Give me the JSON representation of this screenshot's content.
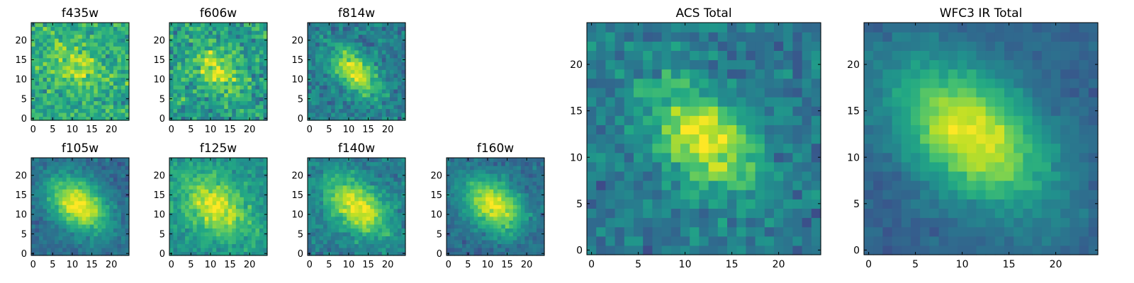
{
  "colormap": "viridis",
  "chart_data": [
    {
      "type": "heatmap",
      "title": "f435w",
      "size": 25,
      "xticks": [
        0,
        5,
        10,
        15,
        20
      ],
      "yticks": [
        0,
        5,
        10,
        15,
        20
      ],
      "xlim": [
        0,
        24
      ],
      "ylim": [
        0,
        24
      ],
      "center": [
        11,
        13
      ],
      "sigma": [
        4.5,
        3
      ],
      "angle": -45,
      "peak": 0.28,
      "base": 0.62,
      "noise": 0.28,
      "seed": 11
    },
    {
      "type": "heatmap",
      "title": "f606w",
      "size": 25,
      "xticks": [
        0,
        5,
        10,
        15,
        20
      ],
      "yticks": [
        0,
        5,
        10,
        15,
        20
      ],
      "xlim": [
        0,
        24
      ],
      "ylim": [
        0,
        24
      ],
      "center": [
        11.5,
        12.5
      ],
      "sigma": [
        4.5,
        3
      ],
      "angle": -45,
      "peak": 0.4,
      "base": 0.55,
      "noise": 0.3,
      "seed": 22
    },
    {
      "type": "heatmap",
      "title": "f814w",
      "size": 25,
      "xticks": [
        0,
        5,
        10,
        15,
        20
      ],
      "yticks": [
        0,
        5,
        10,
        15,
        20
      ],
      "xlim": [
        0,
        24
      ],
      "ylim": [
        0,
        24
      ],
      "center": [
        11.5,
        12
      ],
      "sigma": [
        5,
        2.8
      ],
      "angle": -45,
      "peak": 0.55,
      "base": 0.42,
      "noise": 0.22,
      "seed": 33
    },
    {
      "type": "heatmap",
      "title": "f105w",
      "size": 25,
      "xticks": [
        0,
        5,
        10,
        15,
        20
      ],
      "yticks": [
        0,
        5,
        10,
        15,
        20
      ],
      "xlim": [
        0,
        24
      ],
      "ylim": [
        0,
        24
      ],
      "center": [
        11.5,
        12.5
      ],
      "sigma": [
        6,
        4
      ],
      "angle": -40,
      "peak": 0.65,
      "base": 0.35,
      "noise": 0.15,
      "seed": 44
    },
    {
      "type": "heatmap",
      "title": "f125w",
      "size": 25,
      "xticks": [
        0,
        5,
        10,
        15,
        20
      ],
      "yticks": [
        0,
        5,
        10,
        15,
        20
      ],
      "xlim": [
        0,
        24
      ],
      "ylim": [
        0,
        24
      ],
      "center": [
        11.5,
        12
      ],
      "sigma": [
        7,
        4.5
      ],
      "angle": -40,
      "peak": 0.45,
      "base": 0.5,
      "noise": 0.18,
      "seed": 55
    },
    {
      "type": "heatmap",
      "title": "f140w",
      "size": 25,
      "xticks": [
        0,
        5,
        10,
        15,
        20
      ],
      "yticks": [
        0,
        5,
        10,
        15,
        20
      ],
      "xlim": [
        0,
        24
      ],
      "ylim": [
        0,
        24
      ],
      "center": [
        12,
        12
      ],
      "sigma": [
        6.5,
        4
      ],
      "angle": -40,
      "peak": 0.55,
      "base": 0.42,
      "noise": 0.18,
      "seed": 66
    },
    {
      "type": "heatmap",
      "title": "f160w",
      "size": 25,
      "xticks": [
        0,
        5,
        10,
        15,
        20
      ],
      "yticks": [
        0,
        5,
        10,
        15,
        20
      ],
      "xlim": [
        0,
        24
      ],
      "ylim": [
        0,
        24
      ],
      "center": [
        11.5,
        12.5
      ],
      "sigma": [
        6,
        4
      ],
      "angle": -40,
      "peak": 0.62,
      "base": 0.35,
      "noise": 0.15,
      "seed": 77
    },
    {
      "type": "heatmap",
      "title": "ACS Total",
      "size": 25,
      "xticks": [
        0,
        5,
        10,
        15,
        20
      ],
      "yticks": [
        0,
        5,
        10,
        15,
        20
      ],
      "xlim": [
        0,
        24
      ],
      "ylim": [
        0,
        24
      ],
      "center": [
        12,
        12
      ],
      "sigma": [
        4.8,
        3
      ],
      "angle": -45,
      "peak": 0.6,
      "base": 0.4,
      "noise": 0.22,
      "seed": 88
    },
    {
      "type": "heatmap",
      "title": "WFC3 IR Total",
      "size": 25,
      "xticks": [
        0,
        5,
        10,
        15,
        20
      ],
      "yticks": [
        0,
        5,
        10,
        15,
        20
      ],
      "xlim": [
        0,
        24
      ],
      "ylim": [
        0,
        24
      ],
      "center": [
        11,
        12.5
      ],
      "sigma": [
        6.5,
        4
      ],
      "angle": -40,
      "peak": 0.65,
      "base": 0.32,
      "noise": 0.1,
      "seed": 99
    }
  ]
}
